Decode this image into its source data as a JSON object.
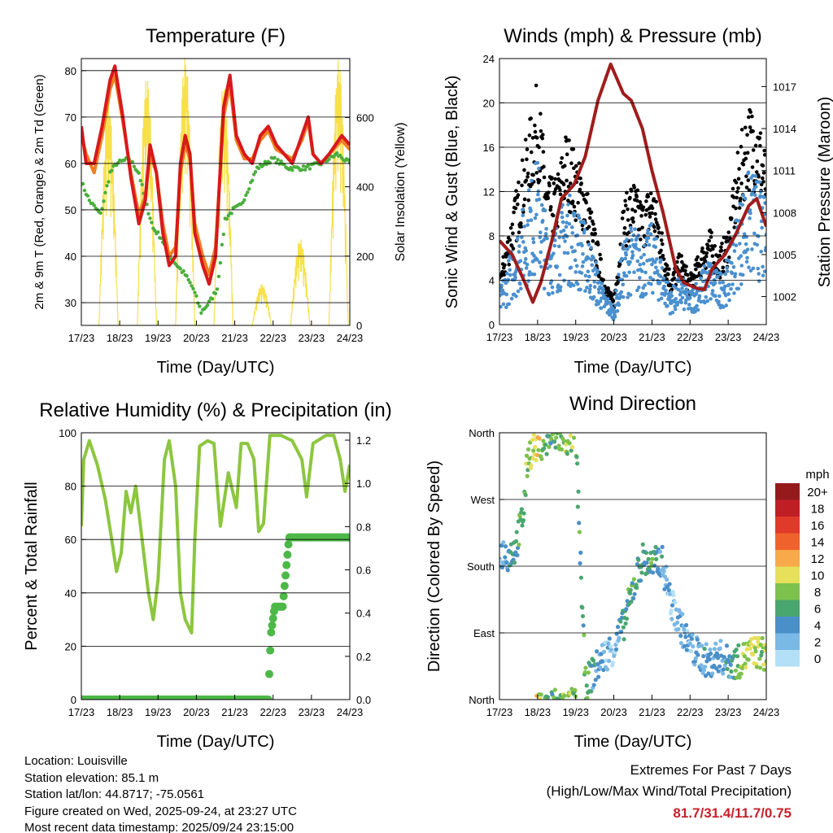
{
  "x_ticks": [
    "17/23",
    "18/23",
    "19/23",
    "20/23",
    "21/23",
    "22/23",
    "23/23",
    "24/23"
  ],
  "xlabel": "Time (Day/UTC)",
  "info": {
    "location": "Location: Louisville",
    "elevation": "Station elevation: 85.1 m",
    "latlon": "Station lat/lon: 44.8717; -75.0561",
    "created": "Figure created on Wed, 2025-09-24, at 23:27 UTC",
    "recent": "Most recent data timestamp: 2025/09/24 23:15:00"
  },
  "extremes": {
    "title": "Extremes For Past 7 Days",
    "subtitle": "(High/Low/Max Wind/Total Precipitation)",
    "values": "81.7/31.4/11.7/0.75",
    "color": "#c8202a"
  },
  "chart_data": [
    {
      "type": "line",
      "title": "Temperature (F)",
      "ylabel": "2m & 9m T (Red, Orange) & 2m Td (Green)",
      "ylabel_right": "Solar Insolation (Yellow)",
      "ylim": [
        25.1,
        82.6
      ],
      "yticks": [
        30,
        40,
        50,
        60,
        70,
        80
      ],
      "ylim_right": [
        0,
        770
      ],
      "yticks_right": [
        0,
        200,
        400,
        600
      ],
      "x_unit": "hours since 17/23",
      "xlim": [
        0,
        168
      ],
      "series": [
        {
          "name": "2m T",
          "color": "#d7191c",
          "points": [
            [
              0,
              68
            ],
            [
              3,
              60
            ],
            [
              8,
              60
            ],
            [
              13,
              68
            ],
            [
              18,
              78
            ],
            [
              21,
              81
            ],
            [
              26,
              70
            ],
            [
              31,
              57
            ],
            [
              36,
              47
            ],
            [
              40,
              52
            ],
            [
              43,
              64
            ],
            [
              47,
              58
            ],
            [
              51,
              45
            ],
            [
              55,
              38
            ],
            [
              59,
              40
            ],
            [
              62,
              60
            ],
            [
              65,
              66
            ],
            [
              68,
              62
            ],
            [
              71,
              45
            ],
            [
              76,
              38
            ],
            [
              80,
              34
            ],
            [
              84,
              40
            ],
            [
              89,
              72
            ],
            [
              93,
              79
            ],
            [
              97,
              66
            ],
            [
              102,
              62
            ],
            [
              107,
              60
            ],
            [
              112,
              66
            ],
            [
              117,
              68
            ],
            [
              122,
              64
            ],
            [
              127,
              62
            ],
            [
              132,
              60
            ],
            [
              138,
              66
            ],
            [
              142,
              70
            ],
            [
              145,
              62
            ],
            [
              150,
              60
            ],
            [
              155,
              62
            ],
            [
              163,
              66
            ],
            [
              168,
              64
            ]
          ]
        },
        {
          "name": "9m T",
          "color": "#f07f22",
          "points": [
            [
              0,
              66
            ],
            [
              3,
              62
            ],
            [
              8,
              58
            ],
            [
              13,
              66
            ],
            [
              18,
              76
            ],
            [
              21,
              79
            ],
            [
              26,
              69
            ],
            [
              31,
              58
            ],
            [
              36,
              49
            ],
            [
              40,
              53
            ],
            [
              43,
              62
            ],
            [
              47,
              58
            ],
            [
              51,
              47
            ],
            [
              55,
              40
            ],
            [
              59,
              42
            ],
            [
              62,
              58
            ],
            [
              65,
              64
            ],
            [
              68,
              61
            ],
            [
              71,
              47
            ],
            [
              76,
              40
            ],
            [
              80,
              36
            ],
            [
              84,
              42
            ],
            [
              89,
              70
            ],
            [
              93,
              77
            ],
            [
              97,
              65
            ],
            [
              102,
              61
            ],
            [
              107,
              61
            ],
            [
              112,
              65
            ],
            [
              117,
              67
            ],
            [
              122,
              63
            ],
            [
              127,
              62
            ],
            [
              132,
              61
            ],
            [
              138,
              65
            ],
            [
              142,
              69
            ],
            [
              145,
              62
            ],
            [
              150,
              60
            ],
            [
              155,
              62
            ],
            [
              163,
              65
            ],
            [
              168,
              63
            ]
          ]
        },
        {
          "name": "2m Td",
          "color": "#4aae3c",
          "points": [
            [
              0,
              56
            ],
            [
              5,
              52
            ],
            [
              12,
              49
            ],
            [
              18,
              58
            ],
            [
              22,
              60
            ],
            [
              30,
              61
            ],
            [
              36,
              58
            ],
            [
              40,
              52
            ],
            [
              45,
              46
            ],
            [
              50,
              44
            ],
            [
              55,
              40
            ],
            [
              60,
              38
            ],
            [
              65,
              36
            ],
            [
              70,
              33
            ],
            [
              75,
              28
            ],
            [
              80,
              30
            ],
            [
              85,
              33
            ],
            [
              90,
              48
            ],
            [
              95,
              50
            ],
            [
              100,
              51
            ],
            [
              105,
              55
            ],
            [
              110,
              59
            ],
            [
              115,
              60
            ],
            [
              120,
              61
            ],
            [
              130,
              59
            ],
            [
              140,
              59
            ],
            [
              150,
              60
            ],
            [
              160,
              62
            ],
            [
              168,
              60
            ]
          ]
        },
        {
          "name": "Solar Insolation",
          "color": "#f7e04a",
          "axis": "right",
          "daily_peaks": [
            650,
            720,
            780,
            700,
            120,
            250,
            770
          ]
        }
      ]
    },
    {
      "type": "scatter",
      "title": "Winds (mph) & Pressure (mb)",
      "ylabel": "Sonic Wind & Gust (Blue, Black)",
      "ylabel_right": "Station Pressure (Maroon)",
      "ylim": [
        0,
        24
      ],
      "yticks": [
        0,
        4,
        8,
        12,
        16,
        20,
        24
      ],
      "ylim_right": [
        1000,
        1019
      ],
      "yticks_right": [
        1002,
        1005,
        1008,
        1011,
        1014,
        1017
      ],
      "xlim": [
        0,
        168
      ],
      "series": [
        {
          "name": "Sonic Wind",
          "color": "#4a90cf",
          "points": [
            [
              0,
              2
            ],
            [
              6,
              4
            ],
            [
              12,
              6
            ],
            [
              18,
              8
            ],
            [
              24,
              10
            ],
            [
              30,
              6
            ],
            [
              36,
              6
            ],
            [
              42,
              8
            ],
            [
              48,
              7
            ],
            [
              54,
              6
            ],
            [
              60,
              4
            ],
            [
              66,
              2
            ],
            [
              72,
              1
            ],
            [
              78,
              5
            ],
            [
              84,
              6
            ],
            [
              90,
              5
            ],
            [
              96,
              6
            ],
            [
              102,
              4
            ],
            [
              108,
              2
            ],
            [
              114,
              3
            ],
            [
              120,
              2
            ],
            [
              126,
              3
            ],
            [
              132,
              4
            ],
            [
              138,
              3
            ],
            [
              144,
              4
            ],
            [
              150,
              7
            ],
            [
              156,
              9
            ],
            [
              162,
              9
            ],
            [
              168,
              7
            ]
          ]
        },
        {
          "name": "Gust",
          "color": "#000000",
          "factor": 1.6
        },
        {
          "name": "Station Pressure",
          "color": "#a01c1c",
          "axis": "right",
          "points": [
            [
              0,
              1006
            ],
            [
              8,
              1005
            ],
            [
              16,
              1003
            ],
            [
              21,
              1001.6
            ],
            [
              26,
              1003
            ],
            [
              33,
              1006
            ],
            [
              39,
              1009
            ],
            [
              47,
              1010
            ],
            [
              54,
              1012
            ],
            [
              62,
              1016
            ],
            [
              70,
              1018.6
            ],
            [
              78,
              1016.5
            ],
            [
              83,
              1016
            ],
            [
              90,
              1014
            ],
            [
              96,
              1011
            ],
            [
              103,
              1008
            ],
            [
              111,
              1004
            ],
            [
              116,
              1003
            ],
            [
              124,
              1002.6
            ],
            [
              129,
              1002.5
            ],
            [
              134,
              1004
            ],
            [
              142,
              1005
            ],
            [
              149,
              1006.5
            ],
            [
              157,
              1008.5
            ],
            [
              162,
              1009
            ],
            [
              168,
              1007
            ]
          ]
        }
      ]
    },
    {
      "type": "line",
      "title": "Relative Humidity (%) & Precipitation (in)",
      "ylabel": "Percent & Total Rainfall",
      "ylim": [
        0,
        100
      ],
      "yticks": [
        0,
        20,
        40,
        60,
        80,
        100
      ],
      "ylim_right": [
        0,
        1.234
      ],
      "yticks_right": [
        "0.0",
        "0.2",
        "0.4",
        "0.6",
        "0.8",
        "1.0",
        "1.2"
      ],
      "xlim": [
        0,
        168
      ],
      "series": [
        {
          "name": "Relative Humidity",
          "color": "#8cc63f",
          "points": [
            [
              0,
              65
            ],
            [
              1.5,
              90
            ],
            [
              5,
              97
            ],
            [
              10,
              88
            ],
            [
              15,
              75
            ],
            [
              19,
              60
            ],
            [
              22,
              48
            ],
            [
              25,
              55
            ],
            [
              28,
              78
            ],
            [
              31,
              70
            ],
            [
              34,
              80
            ],
            [
              38,
              60
            ],
            [
              42,
              40
            ],
            [
              45,
              30
            ],
            [
              48,
              45
            ],
            [
              52,
              90
            ],
            [
              55,
              97
            ],
            [
              59,
              80
            ],
            [
              62,
              40
            ],
            [
              65,
              30
            ],
            [
              69,
              25
            ],
            [
              71,
              60
            ],
            [
              74,
              95
            ],
            [
              79,
              97
            ],
            [
              83,
              96
            ],
            [
              85,
              80
            ],
            [
              87,
              65
            ],
            [
              92,
              85
            ],
            [
              97,
              72
            ],
            [
              100,
              96
            ],
            [
              104,
              96
            ],
            [
              108,
              90
            ],
            [
              111,
              63
            ],
            [
              114,
              66
            ],
            [
              118,
              99
            ],
            [
              125,
              99
            ],
            [
              132,
              97
            ],
            [
              138,
              90
            ],
            [
              141,
              76
            ],
            [
              145,
              96
            ],
            [
              153,
              99
            ],
            [
              158,
              99
            ],
            [
              162,
              90
            ],
            [
              165,
              78
            ],
            [
              168,
              88
            ]
          ]
        },
        {
          "name": "Total Precipitation",
          "color": "#4db848",
          "axis": "right",
          "points": [
            [
              0,
              0
            ],
            [
              117,
              0
            ],
            [
              117.5,
              0.1
            ],
            [
              118.6,
              0.3
            ],
            [
              121,
              0.43
            ],
            [
              126,
              0.43
            ],
            [
              130,
              0.75
            ],
            [
              168,
              0.75
            ]
          ]
        }
      ]
    },
    {
      "type": "scatter",
      "title": "Wind Direction",
      "ylabel": "Direction (Colored By Speed)",
      "ylim": [
        0,
        360
      ],
      "ytick_labels": [
        "North",
        "East",
        "South",
        "West",
        "North"
      ],
      "xlim": [
        0,
        168
      ],
      "direction_points": [
        [
          0,
          200
        ],
        [
          6,
          195
        ],
        [
          10,
          205
        ],
        [
          15,
          250
        ],
        [
          18,
          330
        ],
        [
          24,
          345
        ],
        [
          30,
          350
        ],
        [
          36,
          355
        ],
        [
          42,
          350
        ],
        [
          48,
          355
        ],
        [
          54,
          20
        ],
        [
          60,
          40
        ],
        [
          66,
          60
        ],
        [
          72,
          70
        ],
        [
          78,
          100
        ],
        [
          84,
          150
        ],
        [
          90,
          190
        ],
        [
          96,
          180
        ],
        [
          102,
          190
        ],
        [
          108,
          130
        ],
        [
          114,
          100
        ],
        [
          120,
          70
        ],
        [
          126,
          60
        ],
        [
          132,
          50
        ],
        [
          138,
          60
        ],
        [
          144,
          50
        ],
        [
          150,
          50
        ],
        [
          156,
          60
        ],
        [
          162,
          65
        ],
        [
          168,
          60
        ]
      ],
      "legend": {
        "title": "mph",
        "labels": [
          "20+",
          "18",
          "16",
          "14",
          "12",
          "10",
          "8",
          "6",
          "4",
          "2",
          "0"
        ],
        "colors": [
          "#941a1c",
          "#c01e25",
          "#e03a2a",
          "#f0622c",
          "#f8a94a",
          "#e6e05a",
          "#7dc24c",
          "#4aa66f",
          "#4a8fc8",
          "#7ab8e5",
          "#b4e0f7"
        ],
        "placement": "right"
      }
    }
  ]
}
